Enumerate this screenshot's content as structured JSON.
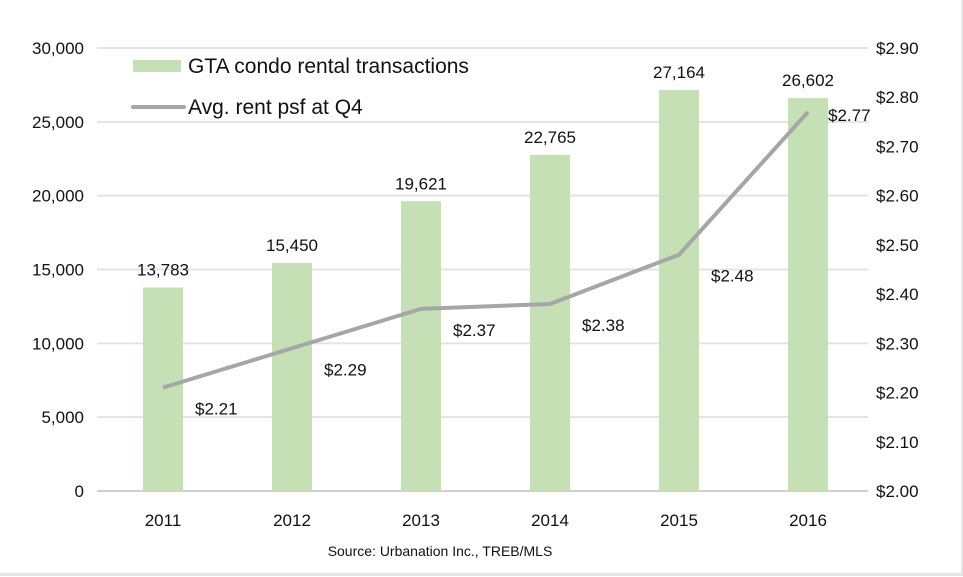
{
  "chart_data": {
    "type": "bar+line",
    "categories": [
      "2011",
      "2012",
      "2013",
      "2014",
      "2015",
      "2016"
    ],
    "series": [
      {
        "name": "GTA condo rental transactions",
        "type": "bar",
        "axis": "left",
        "color": "#c5e0b4",
        "values": [
          13783,
          15450,
          19621,
          22765,
          27164,
          26602
        ],
        "labels": [
          "13,783",
          "15,450",
          "19,621",
          "22,765",
          "27,164",
          "26,602"
        ]
      },
      {
        "name": "Avg. rent psf at Q4",
        "type": "line",
        "axis": "right",
        "color": "#a6a6a6",
        "values": [
          2.21,
          2.29,
          2.37,
          2.38,
          2.48,
          2.77
        ],
        "labels": [
          "$2.21",
          "$2.29",
          "$2.37",
          "$2.38",
          "$2.48",
          "$2.77"
        ]
      }
    ],
    "ylim_left": [
      0,
      30000
    ],
    "yticks_left": [
      "0",
      "5,000",
      "10,000",
      "15,000",
      "20,000",
      "25,000",
      "30,000"
    ],
    "ylim_right": [
      2.0,
      2.9
    ],
    "yticks_right": [
      "$2.00",
      "$2.10",
      "$2.20",
      "$2.30",
      "$2.40",
      "$2.50",
      "$2.60",
      "$2.70",
      "$2.80",
      "$2.90"
    ],
    "grid": true,
    "legend": "top-left",
    "source": "Source: Urbanation Inc., TREB/MLS"
  }
}
